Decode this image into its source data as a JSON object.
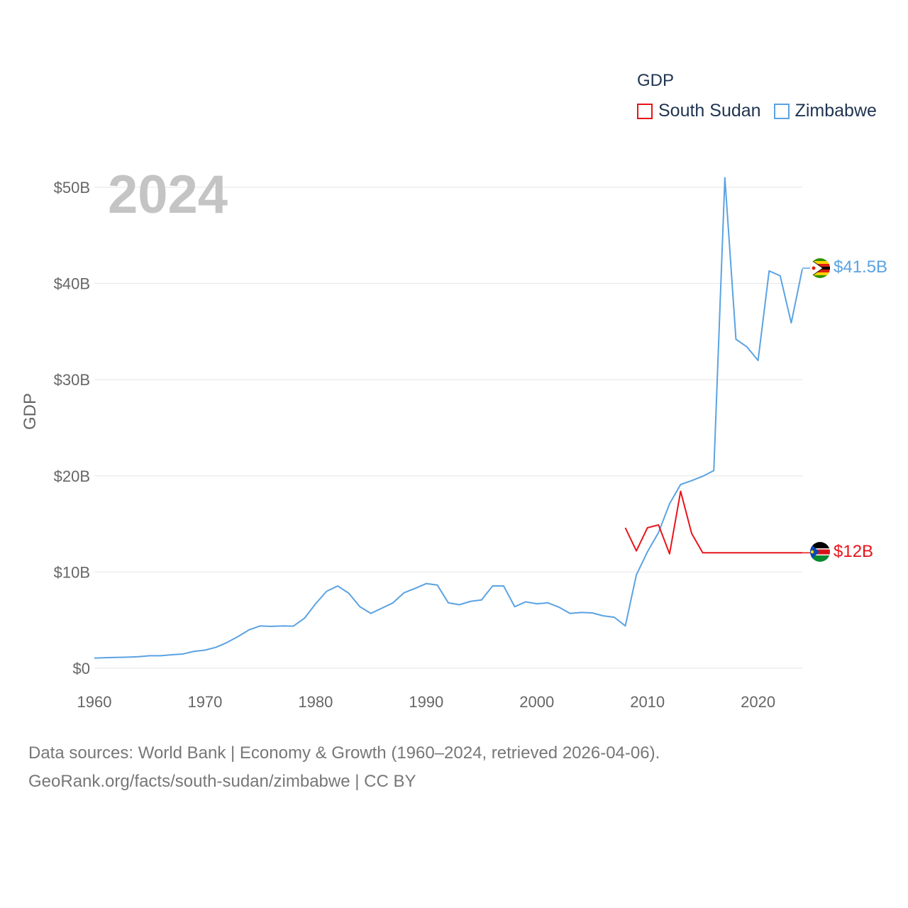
{
  "legend": {
    "title": "GDP",
    "items": [
      {
        "name": "South Sudan",
        "color": "#e8141a"
      },
      {
        "name": "Zimbabwe",
        "color": "#5ba3e2"
      }
    ]
  },
  "year_label": "2024",
  "end_labels": {
    "south_sudan": {
      "text": "$12B",
      "color": "#e8141a",
      "flag": "south-sudan-flag-icon"
    },
    "zimbabwe": {
      "text": "$41.5B",
      "color": "#5ba3e2",
      "flag": "zimbabwe-flag-icon"
    }
  },
  "footer": {
    "line1": "Data sources: World Bank | Economy & Growth (1960–2024, retrieved 2026-04-06).",
    "line2": "GeoRank.org/facts/south-sudan/zimbabwe | CC BY"
  },
  "chart_data": {
    "type": "line",
    "title": "",
    "xlabel": "",
    "ylabel": "GDP",
    "xlim": [
      1960,
      2024
    ],
    "ylim": [
      0,
      50
    ],
    "x_ticks": [
      1960,
      1970,
      1980,
      1990,
      2000,
      2010,
      2020
    ],
    "y_ticks": [
      {
        "value": 0,
        "label": "$0"
      },
      {
        "value": 10,
        "label": "$10B"
      },
      {
        "value": 20,
        "label": "$20B"
      },
      {
        "value": 30,
        "label": "$30B"
      },
      {
        "value": 40,
        "label": "$40B"
      },
      {
        "value": 50,
        "label": "$50B"
      }
    ],
    "grid": true,
    "legend_position": "top-right",
    "series": [
      {
        "name": "South Sudan",
        "color": "#e8141a",
        "x": [
          2008,
          2009,
          2010,
          2011,
          2012,
          2013,
          2014,
          2015,
          2016,
          2017,
          2018,
          2019,
          2020,
          2021,
          2022,
          2023,
          2024
        ],
        "values": [
          14.6,
          12.2,
          14.6,
          14.9,
          11.9,
          18.4,
          14.0,
          12.0,
          12.0,
          12.0,
          12.0,
          12.0,
          12.0,
          12.0,
          12.0,
          12.0,
          12.0
        ]
      },
      {
        "name": "Zimbabwe",
        "color": "#5ba3e2",
        "x": [
          1960,
          1961,
          1962,
          1963,
          1964,
          1965,
          1966,
          1967,
          1968,
          1969,
          1970,
          1971,
          1972,
          1973,
          1974,
          1975,
          1976,
          1977,
          1978,
          1979,
          1980,
          1981,
          1982,
          1983,
          1984,
          1985,
          1986,
          1987,
          1988,
          1989,
          1990,
          1991,
          1992,
          1993,
          1994,
          1995,
          1996,
          1997,
          1998,
          1999,
          2000,
          2001,
          2002,
          2003,
          2004,
          2005,
          2006,
          2007,
          2008,
          2009,
          2010,
          2011,
          2012,
          2013,
          2014,
          2015,
          2016,
          2017,
          2018,
          2019,
          2020,
          2021,
          2022,
          2023,
          2024
        ],
        "values": [
          1.05,
          1.1,
          1.12,
          1.15,
          1.2,
          1.3,
          1.3,
          1.4,
          1.48,
          1.75,
          1.88,
          2.18,
          2.68,
          3.3,
          4.0,
          4.4,
          4.35,
          4.4,
          4.38,
          5.2,
          6.7,
          8.0,
          8.55,
          7.8,
          6.4,
          5.7,
          6.25,
          6.8,
          7.85,
          8.3,
          8.8,
          8.65,
          6.8,
          6.6,
          6.95,
          7.1,
          8.55,
          8.55,
          6.4,
          6.9,
          6.7,
          6.8,
          6.35,
          5.7,
          5.8,
          5.75,
          5.45,
          5.3,
          4.4,
          9.7,
          12.1,
          14.1,
          17.1,
          19.1,
          19.5,
          19.96,
          20.55,
          51.0,
          34.2,
          33.4,
          32.0,
          41.3,
          40.8,
          35.9,
          41.5
        ]
      }
    ]
  }
}
